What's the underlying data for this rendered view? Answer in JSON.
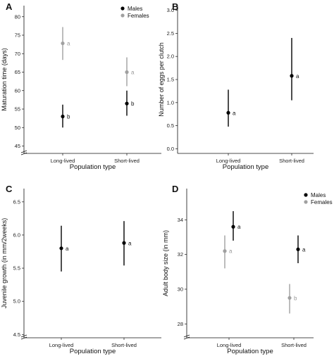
{
  "chart_data": [
    {
      "panel": "A",
      "type": "scatter",
      "categories": [
        "Long-lived",
        "Short-lived"
      ],
      "xlabel": "Population type",
      "ylabel": "Maturation time (days)",
      "ylim": [
        43,
        83
      ],
      "axis_break": true,
      "yticks": [
        45,
        50,
        55,
        60,
        65,
        70,
        75,
        80
      ],
      "legend_position": "top-right",
      "series": [
        {
          "name": "Males",
          "color": "#000000",
          "offset": 0,
          "values": [
            53.0,
            56.5
          ],
          "lower": [
            50.0,
            53.2
          ],
          "upper": [
            56.2,
            60.0
          ],
          "labels": [
            "b",
            "b"
          ]
        },
        {
          "name": "Females",
          "color": "#a0a0a0",
          "offset": 0,
          "values": [
            72.8,
            65.0
          ],
          "lower": [
            68.3,
            61.2
          ],
          "upper": [
            77.2,
            69.0
          ],
          "labels": [
            "a",
            "a"
          ]
        }
      ]
    },
    {
      "panel": "B",
      "type": "scatter",
      "categories": [
        "Long-lived",
        "Short-lived"
      ],
      "xlabel": "Population type",
      "ylabel": "Number of eggs per clutch",
      "ylim": [
        -0.1,
        3.1
      ],
      "axis_break": false,
      "yticks": [
        "0.0",
        "0.5",
        "1.0",
        "1.5",
        "2.0",
        "2.5",
        "3.0"
      ],
      "legend_position": "",
      "series": [
        {
          "name": "",
          "color": "#000000",
          "offset": 0,
          "values": [
            0.78,
            1.58
          ],
          "lower": [
            0.48,
            1.05
          ],
          "upper": [
            1.28,
            2.4
          ],
          "labels": [
            "a",
            "a"
          ]
        }
      ]
    },
    {
      "panel": "C",
      "type": "scatter",
      "categories": [
        "Long-lived",
        "Short-lived"
      ],
      "xlabel": "Population type",
      "ylabel": "Juvenile growth (in mm/2weeks)",
      "ylim": [
        4.45,
        6.7
      ],
      "axis_break": true,
      "yticks": [
        "4.5",
        "5.0",
        "5.5",
        "6.0",
        "6.5"
      ],
      "legend_position": "",
      "series": [
        {
          "name": "",
          "color": "#000000",
          "offset": 0,
          "values": [
            5.8,
            5.88
          ],
          "lower": [
            5.45,
            5.54
          ],
          "upper": [
            6.14,
            6.21
          ],
          "labels": [
            "a",
            "a"
          ]
        }
      ]
    },
    {
      "panel": "D",
      "type": "scatter",
      "categories": [
        "Long-lived",
        "Short-lived"
      ],
      "xlabel": "Population type",
      "ylabel": "Adult body size (in mm)",
      "ylim": [
        27.2,
        35.8
      ],
      "axis_break": true,
      "yticks": [
        28,
        30,
        32,
        34
      ],
      "legend_position": "top-right",
      "series": [
        {
          "name": "Males",
          "color": "#000000",
          "offset": 6,
          "values": [
            33.6,
            32.3
          ],
          "lower": [
            32.8,
            31.5
          ],
          "upper": [
            34.5,
            33.1
          ],
          "labels": [
            "a",
            "a"
          ]
        },
        {
          "name": "Females",
          "color": "#a0a0a0",
          "offset": -6,
          "values": [
            32.2,
            29.5
          ],
          "lower": [
            31.2,
            28.6
          ],
          "upper": [
            33.1,
            30.3
          ],
          "labels": [
            "a",
            "b"
          ]
        }
      ]
    }
  ]
}
